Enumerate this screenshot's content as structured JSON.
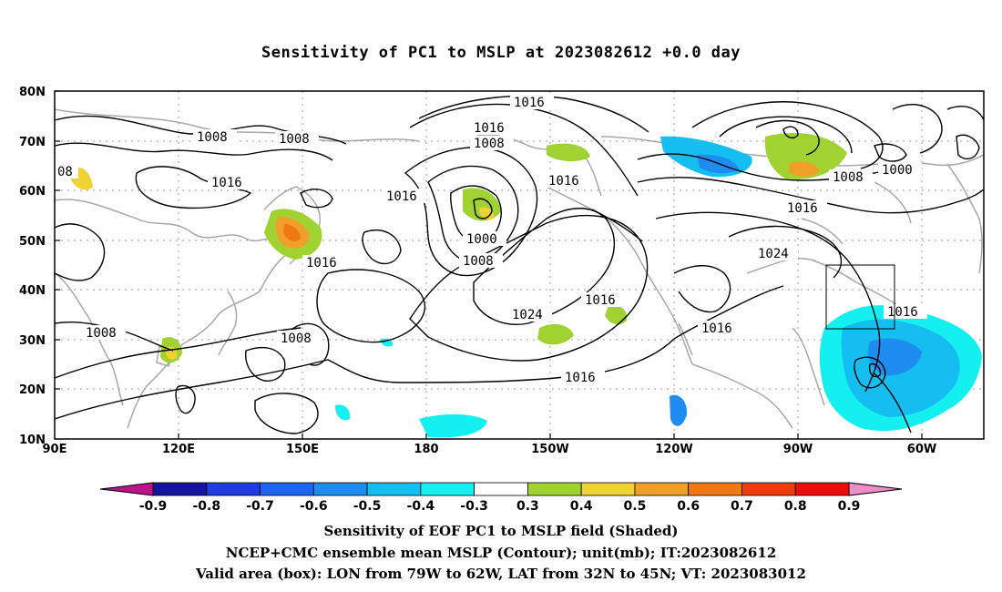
{
  "title": "Sensitivity of PC1 to MSLP at 2023082612 +0.0 day",
  "axes": {
    "lat_labels": [
      "80N",
      "70N",
      "60N",
      "50N",
      "40N",
      "30N",
      "20N",
      "10N"
    ],
    "lon_labels": [
      "90E",
      "120E",
      "150E",
      "180",
      "150W",
      "120W",
      "90W",
      "60W"
    ]
  },
  "colorbar": {
    "labels": [
      "-0.9",
      "-0.8",
      "-0.7",
      "-0.6",
      "-0.5",
      "-0.4",
      "-0.3",
      "0.3",
      "0.4",
      "0.5",
      "0.6",
      "0.7",
      "0.8",
      "0.9"
    ],
    "colors": [
      "#c0108a",
      "#1414a0",
      "#1e3ce0",
      "#1e64f0",
      "#1e8cf0",
      "#14bef0",
      "#14f0f0",
      "#ffffff",
      "#a0d232",
      "#f0d232",
      "#f0a028",
      "#f07814",
      "#f03c0a",
      "#f00a0a",
      "#f08cc8"
    ]
  },
  "contour_labels": [
    "1016",
    "1008",
    "1008",
    "1016",
    "1008",
    "1016",
    "1016",
    "1000",
    "1016",
    "1016",
    "1008",
    "1016",
    "1024",
    "1016",
    "1008",
    "1008",
    "1008",
    "1024",
    "1016",
    "1016",
    "1000",
    "1016",
    "1016",
    "1016",
    "08"
  ],
  "captions": {
    "line1": "Sensitivity of EOF PC1 to MSLP field (Shaded)",
    "line2": "NCEP+CMC ensemble mean MSLP (Contour); unit(mb); IT:2023082612",
    "line3": "Valid area (box): LON from 79W to 62W, LAT from 32N to 45N; VT: 2023083012"
  },
  "valid_box": {
    "lon_from": "79W",
    "lon_to": "62W",
    "lat_from": "32N",
    "lat_to": "45N"
  }
}
